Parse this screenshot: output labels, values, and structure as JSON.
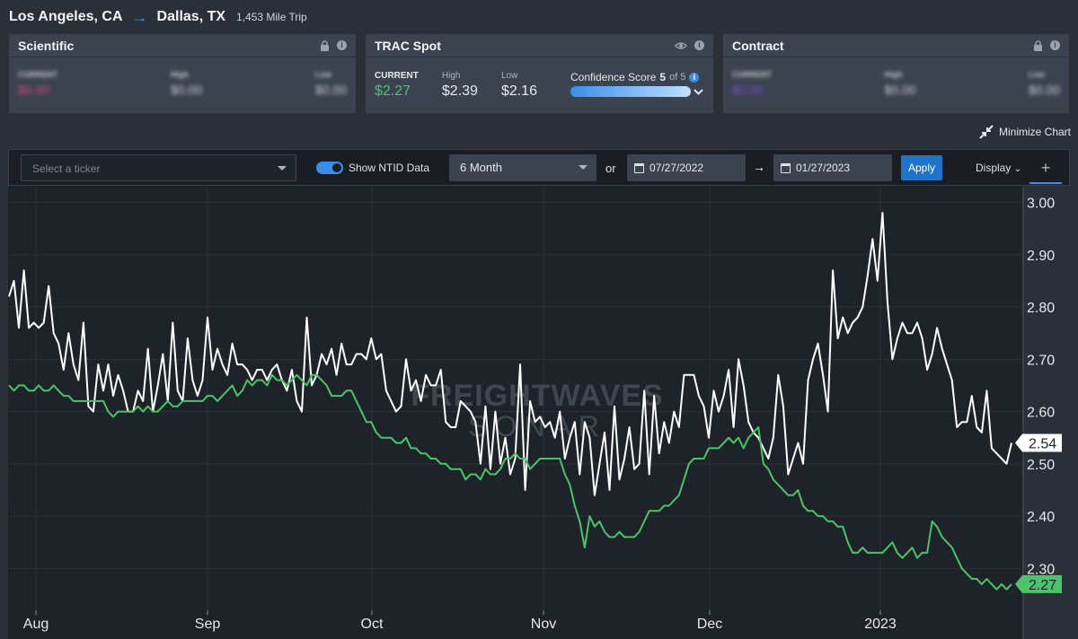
{
  "route": {
    "origin": "Los Angeles, CA",
    "destination": "Dallas, TX",
    "distance": "1,453 Mile Trip"
  },
  "cards": {
    "scientific": {
      "title": "Scientific",
      "labels": [
        "CURRENT",
        "High",
        "Low"
      ],
      "values": [
        "$0.00",
        "$0.00",
        "$0.00"
      ]
    },
    "trac": {
      "title": "TRAC Spot",
      "current_label": "CURRENT",
      "current": "$2.27",
      "high_label": "High",
      "high": "$2.39",
      "low_label": "Low",
      "low": "$2.16",
      "confidence_label": "Confidence Score",
      "confidence_score": "5",
      "confidence_of": "of 5"
    },
    "contract": {
      "title": "Contract",
      "labels": [
        "CURRENT",
        "High",
        "Low"
      ],
      "values": [
        "$0.00",
        "$0.00",
        "$0.00"
      ]
    }
  },
  "minimize_label": "Minimize Chart",
  "toolbar": {
    "ticker_placeholder": "Select a ticker",
    "toggle_label": "Show NTID Data",
    "period": "6 Month",
    "or": "or",
    "start_date": "07/27/2022",
    "end_date": "01/27/2023",
    "apply": "Apply",
    "display": "Display"
  },
  "watermark": {
    "line1": "FREIGHTWAVES",
    "line2": "SONAR"
  },
  "colors": {
    "white_series": "#ffffff",
    "green_series": "#4cc36a",
    "accent": "#3b8ee8"
  },
  "chart_data": {
    "type": "line",
    "x_ticks": [
      "Aug",
      "Sep",
      "Oct",
      "Nov",
      "Dec",
      "2023"
    ],
    "y_ticks": [
      "3.00",
      "2.90",
      "2.80",
      "2.70",
      "2.60",
      "2.50",
      "2.40",
      "2.30"
    ],
    "ylim": [
      2.22,
      3.03
    ],
    "grid": true,
    "series": [
      {
        "last_label": "2.54",
        "values": [
          2.82,
          2.85,
          2.76,
          2.87,
          2.76,
          2.77,
          2.76,
          2.77,
          2.84,
          2.75,
          2.73,
          2.68,
          2.75,
          2.69,
          2.66,
          2.77,
          2.61,
          2.6,
          2.69,
          2.64,
          2.69,
          2.63,
          2.67,
          2.64,
          2.6,
          2.6,
          2.64,
          2.62,
          2.72,
          2.6,
          2.65,
          2.71,
          2.62,
          2.77,
          2.64,
          2.62,
          2.74,
          2.66,
          2.63,
          2.66,
          2.78,
          2.68,
          2.72,
          2.69,
          2.67,
          2.73,
          2.69,
          2.69,
          2.68,
          2.66,
          2.68,
          2.68,
          2.66,
          2.68,
          2.69,
          2.66,
          2.64,
          2.68,
          2.62,
          2.6,
          2.78,
          2.65,
          2.67,
          2.71,
          2.69,
          2.72,
          2.67,
          2.73,
          2.69,
          2.69,
          2.71,
          2.71,
          2.7,
          2.74,
          2.7,
          2.71,
          2.64,
          2.62,
          2.6,
          2.61,
          2.7,
          2.64,
          2.66,
          2.62,
          2.67,
          2.65,
          2.65,
          2.68,
          2.58,
          2.57,
          2.57,
          2.62,
          2.61,
          2.6,
          2.58,
          2.5,
          2.61,
          2.49,
          2.6,
          2.5,
          2.55,
          2.48,
          2.51,
          2.69,
          2.45,
          2.62,
          2.58,
          2.59,
          2.57,
          2.58,
          2.55,
          2.6,
          2.51,
          2.55,
          2.58,
          2.48,
          2.58,
          2.55,
          2.44,
          2.5,
          2.56,
          2.45,
          2.61,
          2.47,
          2.51,
          2.57,
          2.49,
          2.5,
          2.64,
          2.48,
          2.63,
          2.52,
          2.58,
          2.54,
          2.6,
          2.57,
          2.67,
          2.67,
          2.67,
          2.63,
          2.61,
          2.55,
          2.64,
          2.6,
          2.63,
          2.68,
          2.57,
          2.7,
          2.65,
          2.58,
          2.56,
          2.55,
          2.53,
          2.51,
          2.55,
          2.67,
          2.61,
          2.48,
          2.51,
          2.54,
          2.5,
          2.66,
          2.7,
          2.73,
          2.67,
          2.6,
          2.87,
          2.74,
          2.78,
          2.75,
          2.77,
          2.78,
          2.8,
          2.86,
          2.93,
          2.85,
          2.98,
          2.81,
          2.7,
          2.74,
          2.77,
          2.75,
          2.75,
          2.77,
          2.74,
          2.68,
          2.71,
          2.76,
          2.72,
          2.69,
          2.66,
          2.57,
          2.58,
          2.58,
          2.63,
          2.57,
          2.56,
          2.64,
          2.53,
          2.52,
          2.51,
          2.5,
          2.54
        ]
      },
      {
        "last_label": "2.27",
        "values": [
          2.65,
          2.64,
          2.65,
          2.65,
          2.64,
          2.64,
          2.65,
          2.64,
          2.64,
          2.65,
          2.64,
          2.63,
          2.63,
          2.62,
          2.62,
          2.62,
          2.62,
          2.62,
          2.62,
          2.62,
          2.6,
          2.59,
          2.6,
          2.6,
          2.6,
          2.6,
          2.61,
          2.6,
          2.61,
          2.6,
          2.6,
          2.61,
          2.62,
          2.61,
          2.61,
          2.62,
          2.62,
          2.62,
          2.62,
          2.62,
          2.63,
          2.63,
          2.62,
          2.63,
          2.64,
          2.65,
          2.63,
          2.64,
          2.66,
          2.65,
          2.66,
          2.66,
          2.65,
          2.67,
          2.66,
          2.66,
          2.65,
          2.66,
          2.67,
          2.66,
          2.65,
          2.67,
          2.67,
          2.66,
          2.65,
          2.63,
          2.63,
          2.63,
          2.64,
          2.64,
          2.62,
          2.6,
          2.58,
          2.58,
          2.56,
          2.55,
          2.55,
          2.55,
          2.54,
          2.54,
          2.55,
          2.53,
          2.53,
          2.52,
          2.52,
          2.51,
          2.51,
          2.5,
          2.5,
          2.49,
          2.49,
          2.49,
          2.47,
          2.48,
          2.48,
          2.47,
          2.49,
          2.48,
          2.48,
          2.49,
          2.51,
          2.51,
          2.52,
          2.51,
          2.51,
          2.49,
          2.5,
          2.51,
          2.51,
          2.51,
          2.51,
          2.51,
          2.48,
          2.46,
          2.42,
          2.39,
          2.34,
          2.4,
          2.38,
          2.39,
          2.37,
          2.36,
          2.36,
          2.37,
          2.36,
          2.36,
          2.36,
          2.37,
          2.39,
          2.41,
          2.41,
          2.41,
          2.42,
          2.42,
          2.43,
          2.44,
          2.47,
          2.5,
          2.51,
          2.51,
          2.51,
          2.53,
          2.53,
          2.53,
          2.54,
          2.55,
          2.54,
          2.55,
          2.53,
          2.55,
          2.56,
          2.57,
          2.5,
          2.49,
          2.47,
          2.46,
          2.45,
          2.44,
          2.44,
          2.45,
          2.42,
          2.41,
          2.41,
          2.4,
          2.4,
          2.39,
          2.39,
          2.38,
          2.38,
          2.35,
          2.33,
          2.33,
          2.34,
          2.33,
          2.33,
          2.33,
          2.33,
          2.34,
          2.35,
          2.33,
          2.32,
          2.33,
          2.34,
          2.32,
          2.33,
          2.33,
          2.39,
          2.38,
          2.36,
          2.35,
          2.34,
          2.32,
          2.3,
          2.29,
          2.28,
          2.28,
          2.27,
          2.28,
          2.27,
          2.26,
          2.27,
          2.26,
          2.27
        ]
      }
    ]
  }
}
